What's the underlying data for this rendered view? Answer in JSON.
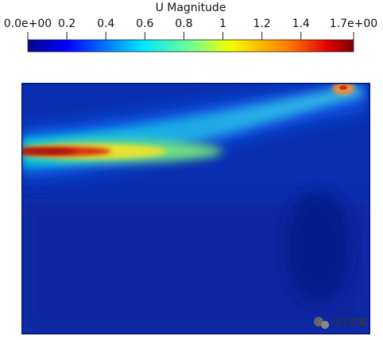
{
  "colorbar": {
    "title": "U Magnitude",
    "range": [
      0,
      1.67
    ],
    "ticks": [
      {
        "value": 0,
        "label": "0.0e+00"
      },
      0.2,
      0.4,
      0.6,
      0.8,
      1,
      1.2,
      1.4,
      {
        "value": 1.67,
        "label": "1.7e+00"
      }
    ]
  },
  "watermark": "CFD之道"
}
